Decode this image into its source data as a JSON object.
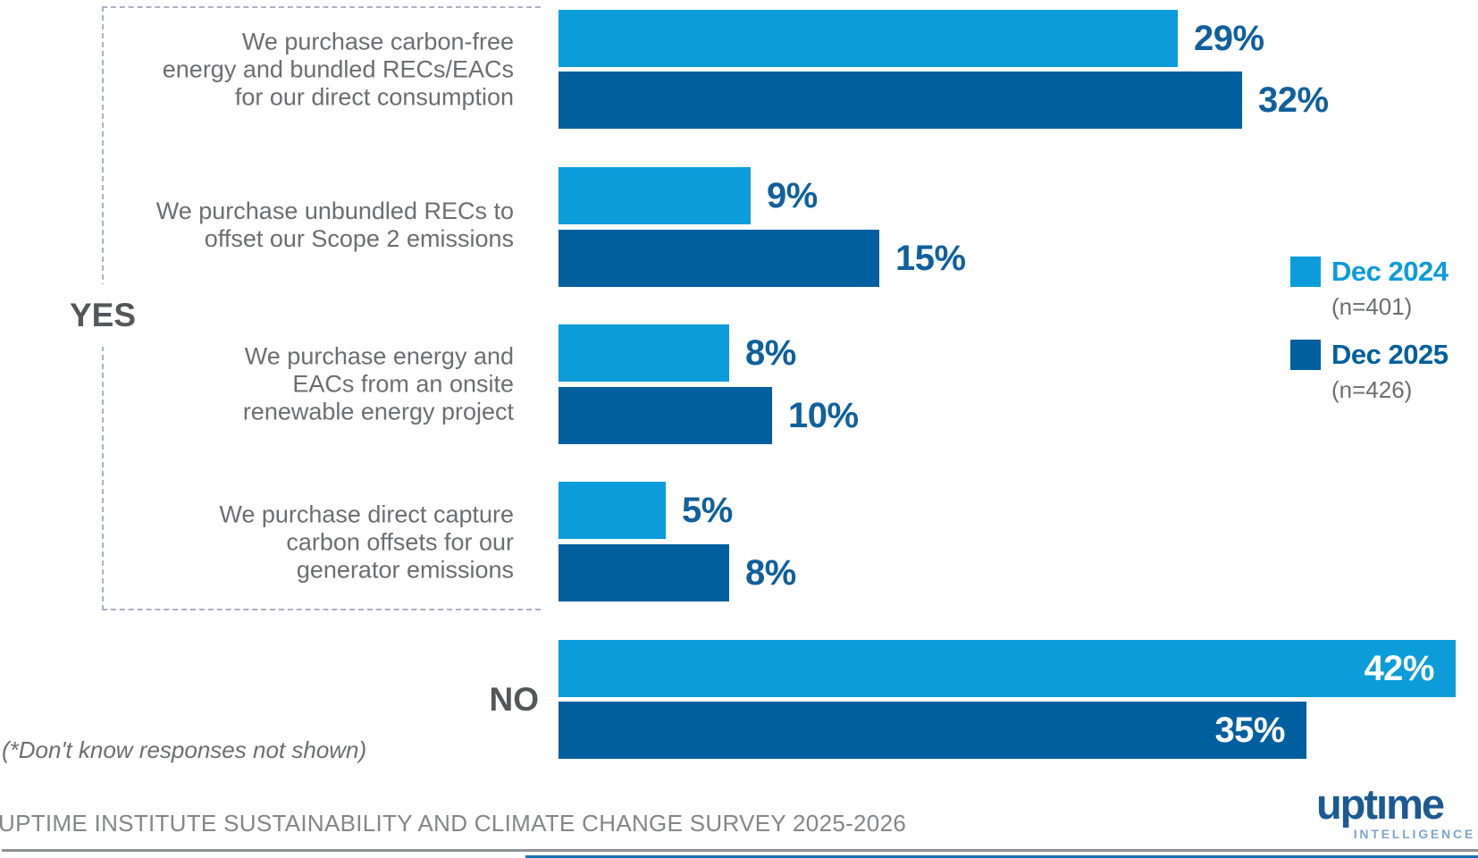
{
  "chart_data": {
    "type": "bar",
    "orientation": "horizontal",
    "title": "",
    "unit": "percent",
    "group_labels": {
      "yes": "YES",
      "no": "NO"
    },
    "categories": [
      "We purchase carbon-free\nenergy and bundled RECs/EACs\nfor our direct consumption",
      "We purchase unbundled RECs to\noffset our Scope 2 emissions",
      "We purchase energy and\nEACs from an onsite\nrenewable energy project",
      "We purchase direct capture\ncarbon offsets for our\ngenerator emissions",
      "NO"
    ],
    "series": [
      {
        "name": "Dec 2024",
        "n_label": "(n=401)",
        "color": "#0c9cda",
        "values": [
          29,
          9,
          8,
          5,
          42
        ],
        "value_labels": [
          "29%",
          "9%",
          "8%",
          "5%",
          "42%"
        ]
      },
      {
        "name": "Dec 2025",
        "n_label": "(n=426)",
        "color": "#005f9f",
        "values": [
          32,
          15,
          10,
          8,
          35
        ],
        "value_labels": [
          "32%",
          "15%",
          "10%",
          "8%",
          "35%"
        ]
      }
    ],
    "xlim": [
      0,
      42
    ],
    "grid": false,
    "legend_position": "right",
    "value_labels_inside_for": "NO"
  },
  "footnote": "(*Don't know responses not shown)",
  "footer": {
    "title": "UPTIME INSTITUTE SUSTAINABILITY AND CLIMATE CHANGE SURVEY 2025-2026"
  },
  "logo": {
    "wordmark": "uptıme",
    "sub": "INTELLIGENCE"
  }
}
